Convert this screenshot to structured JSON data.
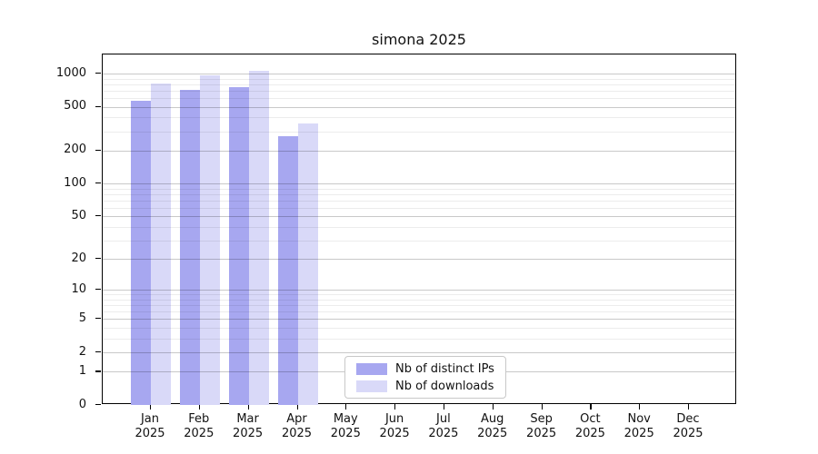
{
  "title": "simona 2025",
  "chart_data": {
    "type": "bar",
    "title": "simona 2025",
    "categories": [
      "Jan",
      "Feb",
      "Mar",
      "Apr",
      "May",
      "Jun",
      "Jul",
      "Aug",
      "Sep",
      "Oct",
      "Nov",
      "Dec"
    ],
    "year_label": "2025",
    "series": [
      {
        "name": "Nb of distinct IPs",
        "color": "#a7a7f0",
        "values": [
          570,
          712,
          760,
          270,
          0,
          0,
          0,
          0,
          0,
          0,
          0,
          0
        ]
      },
      {
        "name": "Nb of downloads",
        "color": "#d9d9f8",
        "values": [
          810,
          960,
          1050,
          350,
          0,
          0,
          0,
          0,
          0,
          0,
          0,
          0
        ]
      }
    ],
    "y_ticks": [
      0,
      1,
      2,
      5,
      10,
      20,
      50,
      100,
      200,
      500,
      1000
    ],
    "y_scale": "log10(value+1)",
    "ylim": [
      0,
      1470
    ],
    "grid": "horizontal major and minor log gridlines",
    "legend_position": "lower center"
  },
  "legend": {
    "items": [
      {
        "label": "Nb of distinct IPs",
        "color": "#a7a7f0"
      },
      {
        "label": "Nb of downloads",
        "color": "#d9d9f8"
      }
    ]
  },
  "colors": {
    "bar_distinct_ips": "#a7a7f0",
    "bar_downloads": "#d9d9f8",
    "axis": "#000000",
    "grid_major": "#cecece",
    "grid_minor": "#eaeaea",
    "background": "#ffffff",
    "text": "#111111"
  }
}
